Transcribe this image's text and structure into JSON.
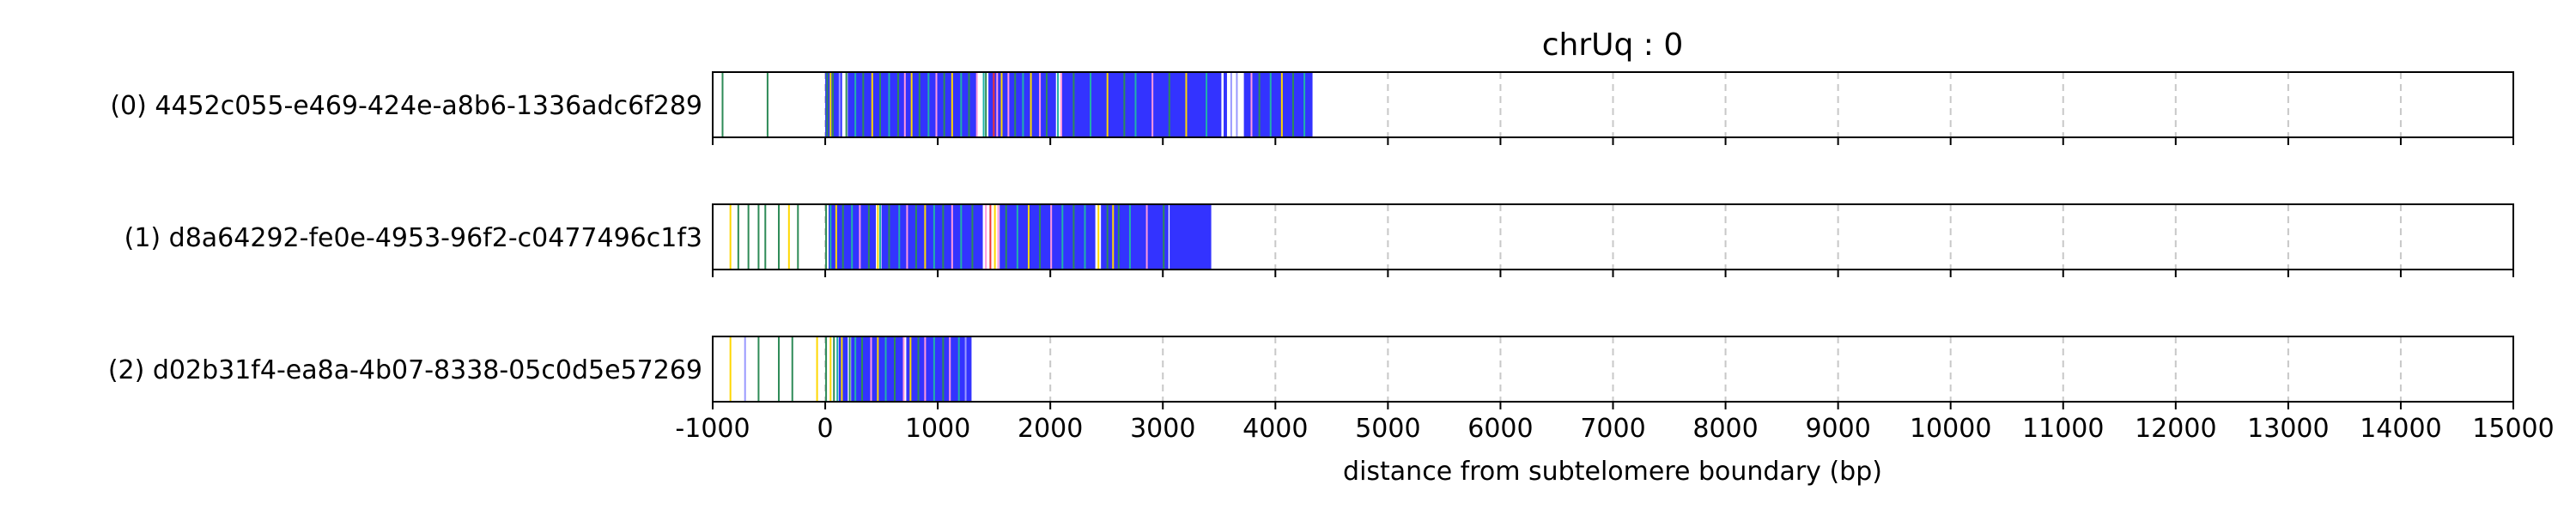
{
  "chart_data": {
    "type": "heatmap",
    "title": "chrUq : 0",
    "xlabel": "distance from subtelomere boundary (bp)",
    "ylabel": "",
    "xlim": [
      -1000,
      15000
    ],
    "xticks": [
      -1000,
      0,
      1000,
      2000,
      3000,
      4000,
      5000,
      6000,
      7000,
      8000,
      9000,
      10000,
      11000,
      12000,
      13000,
      14000,
      15000
    ],
    "xtick_labels": [
      "-1000",
      "0",
      "1000",
      "2000",
      "3000",
      "4000",
      "5000",
      "6000",
      "7000",
      "8000",
      "9000",
      "10000",
      "11000",
      "12000",
      "13000",
      "14000",
      "15000"
    ],
    "grid": "vertical dashed",
    "colors": {
      "blue": "#3333ff",
      "green": "#2e8b57",
      "yellow": "#ffd700",
      "pink": "#ff99dd",
      "red": "#ee3333",
      "teal": "#20b2aa",
      "lightblue": "#9999ff",
      "grid": "#c8c8c8"
    },
    "reads": [
      {
        "label": "(0) 4452c055-e469-424e-a8b6-1336adc6f289",
        "start": -1000,
        "end": 4330,
        "blue_blocks": [
          [
            0,
            150
          ],
          [
            200,
            1350
          ],
          [
            1450,
            2050
          ],
          [
            2100,
            3520
          ],
          [
            3540,
            3570
          ],
          [
            3720,
            4330
          ]
        ],
        "marks": [
          [
            -920,
            "green"
          ],
          [
            -520,
            "green"
          ],
          [
            10,
            "green"
          ],
          [
            40,
            "yellow"
          ],
          [
            60,
            "green"
          ],
          [
            120,
            "lightblue"
          ],
          [
            180,
            "green"
          ],
          [
            260,
            "teal"
          ],
          [
            330,
            "green"
          ],
          [
            410,
            "yellow"
          ],
          [
            480,
            "green"
          ],
          [
            560,
            "teal"
          ],
          [
            640,
            "green"
          ],
          [
            700,
            "pink"
          ],
          [
            760,
            "yellow"
          ],
          [
            830,
            "green"
          ],
          [
            910,
            "teal"
          ],
          [
            980,
            "pink"
          ],
          [
            1050,
            "green"
          ],
          [
            1120,
            "yellow"
          ],
          [
            1200,
            "teal"
          ],
          [
            1270,
            "green"
          ],
          [
            1340,
            "pink"
          ],
          [
            1400,
            "teal"
          ],
          [
            1420,
            "green"
          ],
          [
            1490,
            "red"
          ],
          [
            1520,
            "pink"
          ],
          [
            1560,
            "yellow"
          ],
          [
            1620,
            "pink"
          ],
          [
            1680,
            "green"
          ],
          [
            1750,
            "teal"
          ],
          [
            1820,
            "yellow"
          ],
          [
            1900,
            "pink"
          ],
          [
            1960,
            "green"
          ],
          [
            2060,
            "teal"
          ],
          [
            2090,
            "pink"
          ],
          [
            2200,
            "green"
          ],
          [
            2350,
            "teal"
          ],
          [
            2500,
            "yellow"
          ],
          [
            2650,
            "green"
          ],
          [
            2750,
            "teal"
          ],
          [
            2900,
            "pink"
          ],
          [
            3050,
            "green"
          ],
          [
            3200,
            "yellow"
          ],
          [
            3380,
            "teal"
          ],
          [
            3600,
            "lightblue"
          ],
          [
            3650,
            "lightblue"
          ],
          [
            3780,
            "pink"
          ],
          [
            3850,
            "green"
          ],
          [
            3950,
            "teal"
          ],
          [
            4050,
            "yellow"
          ],
          [
            4150,
            "green"
          ],
          [
            4250,
            "teal"
          ]
        ]
      },
      {
        "label": "(1) d8a64292-fe0e-4953-96f2-c0477496c1f3",
        "start": -1000,
        "end": 3430,
        "blue_blocks": [
          [
            30,
            450
          ],
          [
            500,
            1400
          ],
          [
            1550,
            2400
          ],
          [
            2450,
            3050
          ],
          [
            3060,
            3430
          ]
        ],
        "marks": [
          [
            -850,
            "yellow"
          ],
          [
            -780,
            "green"
          ],
          [
            -690,
            "green"
          ],
          [
            -600,
            "green"
          ],
          [
            -540,
            "green"
          ],
          [
            -420,
            "green"
          ],
          [
            -330,
            "yellow"
          ],
          [
            -250,
            "green"
          ],
          [
            0,
            "green"
          ],
          [
            40,
            "teal"
          ],
          [
            90,
            "yellow"
          ],
          [
            150,
            "green"
          ],
          [
            230,
            "teal"
          ],
          [
            300,
            "pink"
          ],
          [
            380,
            "green"
          ],
          [
            460,
            "yellow"
          ],
          [
            480,
            "teal"
          ],
          [
            560,
            "green"
          ],
          [
            650,
            "teal"
          ],
          [
            720,
            "pink"
          ],
          [
            800,
            "green"
          ],
          [
            880,
            "yellow"
          ],
          [
            960,
            "teal"
          ],
          [
            1040,
            "green"
          ],
          [
            1120,
            "pink"
          ],
          [
            1200,
            "teal"
          ],
          [
            1300,
            "green"
          ],
          [
            1420,
            "pink"
          ],
          [
            1460,
            "red"
          ],
          [
            1500,
            "yellow"
          ],
          [
            1530,
            "pink"
          ],
          [
            1600,
            "green"
          ],
          [
            1700,
            "teal"
          ],
          [
            1800,
            "yellow"
          ],
          [
            1900,
            "green"
          ],
          [
            2000,
            "pink"
          ],
          [
            2100,
            "teal"
          ],
          [
            2200,
            "green"
          ],
          [
            2300,
            "teal"
          ],
          [
            2420,
            "yellow"
          ],
          [
            2500,
            "green"
          ],
          [
            2550,
            "yellow"
          ],
          [
            2600,
            "green"
          ],
          [
            2700,
            "teal"
          ],
          [
            2850,
            "pink"
          ],
          [
            3000,
            "green"
          ]
        ]
      },
      {
        "label": "(2) d02b31f4-ea8a-4b07-8338-05c0d5e57269",
        "start": -1000,
        "end": 1300,
        "blue_blocks": [
          [
            120,
            200
          ],
          [
            230,
            700
          ],
          [
            720,
            1300
          ]
        ],
        "marks": [
          [
            -850,
            "yellow"
          ],
          [
            -720,
            "lightblue"
          ],
          [
            -600,
            "green"
          ],
          [
            -420,
            "green"
          ],
          [
            -300,
            "green"
          ],
          [
            -80,
            "yellow"
          ],
          [
            0,
            "green"
          ],
          [
            40,
            "yellow"
          ],
          [
            70,
            "green"
          ],
          [
            100,
            "teal"
          ],
          [
            140,
            "yellow"
          ],
          [
            210,
            "green"
          ],
          [
            260,
            "teal"
          ],
          [
            320,
            "green"
          ],
          [
            400,
            "pink"
          ],
          [
            460,
            "yellow"
          ],
          [
            530,
            "teal"
          ],
          [
            610,
            "green"
          ],
          [
            690,
            "pink"
          ],
          [
            750,
            "yellow"
          ],
          [
            820,
            "green"
          ],
          [
            880,
            "pink"
          ],
          [
            960,
            "teal"
          ],
          [
            1040,
            "green"
          ],
          [
            1100,
            "pink"
          ],
          [
            1180,
            "teal"
          ],
          [
            1240,
            "lightblue"
          ]
        ]
      }
    ]
  }
}
